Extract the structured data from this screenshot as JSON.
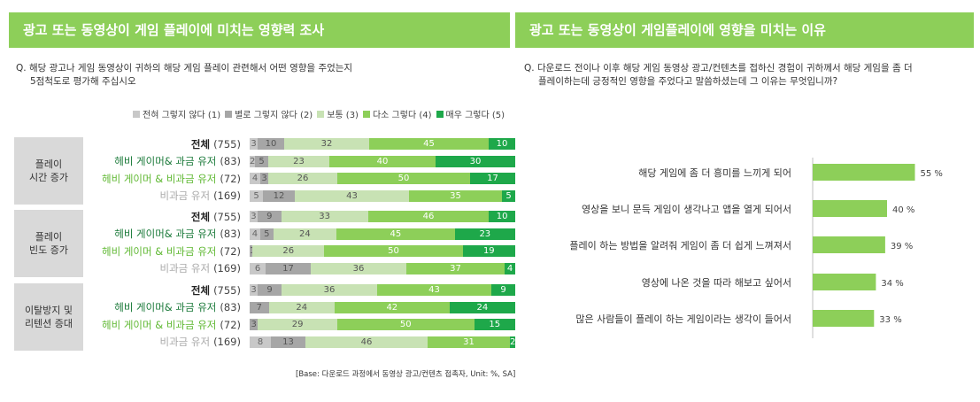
{
  "left_panel": {
    "header": "광고 또는 동영상이 게임 플레이에 미치는 영향력 조사",
    "question_line1": "Q. 해당 광고나 게임 동영상이 귀하의 해당 게임 플레이 관련해서 어떤 영향을 주었는지",
    "question_line2": "5점척도로 평가해 주십시오",
    "base_note": "[Base: 다운로드 과정에서 동영상 광고/컨텐츠 접촉자, Unit: %, SA]",
    "legend": [
      {
        "label": "전혀 그렇지 않다 (1)",
        "color": "#c8c8c8"
      },
      {
        "label": "별로 그렇지 않다 (2)",
        "color": "#a6a6a6"
      },
      {
        "label": "보통 (3)",
        "color": "#c8e2b4"
      },
      {
        "label": "다소 그렇다 (4)",
        "color": "#8dcf59"
      },
      {
        "label": "매우 그렇다 (5)",
        "color": "#1ea84a"
      }
    ]
  },
  "right_panel": {
    "header": "광고 또는 동영상이 게임플레이에 영향을 미치는 이유",
    "question_line1": "Q. 다운로드 전이나 이후 해당 게임 동영상 광고/컨텐츠를 접하신 경험이 귀하께서 해당 게임을 좀 더",
    "question_line2": "플레이하는데 긍정적인 영향을 주었다고 말씀하셨는데 그 이유는 무엇입니까?",
    "bar_color": "#8dcf59"
  },
  "chart_data": [
    {
      "type": "bar",
      "orientation": "horizontal",
      "stacked": true,
      "series_names": [
        "전혀 그렇지 않다 (1)",
        "별로 그렇지 않다 (2)",
        "보통 (3)",
        "다소 그렇다 (4)",
        "매우 그렇다 (5)"
      ],
      "series_colors": [
        "#c8c8c8",
        "#a6a6a6",
        "#c8e2b4",
        "#8dcf59",
        "#1ea84a"
      ],
      "label_colors": [
        "#666666",
        "#555555",
        "#555555",
        "#ffffff",
        "#ffffff"
      ],
      "groups": [
        {
          "name_lines": [
            "플레이",
            "시간 증가"
          ],
          "rows": [
            {
              "label": "전체",
              "n": "(755)",
              "style": "total",
              "values": [
                3,
                10,
                32,
                45,
                10
              ],
              "labels": [
                "3",
                "10",
                "32",
                "45",
                "10"
              ]
            },
            {
              "label": "헤비 게이머& 과금 유저",
              "n": "(83)",
              "style": "heavy",
              "values": [
                2,
                5,
                23,
                40,
                30
              ],
              "labels": [
                "2",
                "5",
                "23",
                "40",
                "30"
              ]
            },
            {
              "label": "헤비 게이머 & 비과금 유저",
              "n": "(72)",
              "style": "paid",
              "values": [
                4,
                3,
                26,
                50,
                17
              ],
              "labels": [
                "4",
                "3",
                "26",
                "50",
                "17"
              ]
            },
            {
              "label": "비과금 유저",
              "n": "(169)",
              "style": "free",
              "values": [
                5,
                12,
                43,
                35,
                5
              ],
              "labels": [
                "5",
                "12",
                "43",
                "35",
                "5"
              ]
            }
          ]
        },
        {
          "name_lines": [
            "플레이",
            "빈도 증가"
          ],
          "rows": [
            {
              "label": "전체",
              "n": "(755)",
              "style": "total",
              "values": [
                3,
                9,
                33,
                46,
                10
              ],
              "labels": [
                "3",
                "9",
                "33",
                "46",
                "10"
              ]
            },
            {
              "label": "헤비 게이머& 과금 유저",
              "n": "(83)",
              "style": "heavy",
              "values": [
                4,
                5,
                24,
                45,
                23
              ],
              "labels": [
                "4",
                "5",
                "24",
                "45",
                "23"
              ]
            },
            {
              "label": "헤비 게이머 & 비과금 유저",
              "n": "(72)",
              "style": "paid",
              "values": [
                0,
                1,
                26,
                50,
                19
              ],
              "labels": [
                "",
                "1",
                "26",
                "50",
                "19"
              ]
            },
            {
              "label": "비과금 유저",
              "n": "(169)",
              "style": "free",
              "values": [
                6,
                17,
                36,
                37,
                4
              ],
              "labels": [
                "6",
                "17",
                "36",
                "37",
                "4"
              ]
            }
          ]
        },
        {
          "name_lines": [
            "이탈방지 및",
            "리텐션 증대"
          ],
          "rows": [
            {
              "label": "전체",
              "n": "(755)",
              "style": "total",
              "values": [
                3,
                9,
                36,
                43,
                9
              ],
              "labels": [
                "3",
                "9",
                "36",
                "43",
                "9"
              ]
            },
            {
              "label": "헤비 게이머& 과금 유저",
              "n": "(83)",
              "style": "heavy",
              "values": [
                0,
                7,
                24,
                42,
                24
              ],
              "labels": [
                "",
                "7",
                "24",
                "42",
                "24"
              ]
            },
            {
              "label": "헤비 게이머 & 비과금 유저",
              "n": "(72)",
              "style": "paid",
              "values": [
                0,
                3,
                29,
                50,
                15
              ],
              "labels": [
                "",
                "3",
                "29",
                "50",
                "15"
              ]
            },
            {
              "label": "비과금 유저",
              "n": "(169)",
              "style": "free",
              "values": [
                8,
                13,
                46,
                31,
                2
              ],
              "labels": [
                "8",
                "13",
                "46",
                "31",
                "2"
              ]
            }
          ]
        }
      ]
    },
    {
      "type": "bar",
      "orientation": "horizontal",
      "categories": [
        "해당 게임에 좀 더 흥미를 느끼게 되어",
        "영상을 보니 문득 게임이 생각나고 앱을 열게 되어서",
        "플레이 하는 방법을 알려줘 게임이  좀 더 쉽게 느껴져서",
        "영상에 나온 것을 따라 해보고 싶어서",
        "많은 사람들이 플레이 하는 게임이라는 생각이 들어서"
      ],
      "values": [
        55,
        40,
        39,
        34,
        33
      ],
      "value_labels": [
        "55 %",
        "40 %",
        "39 %",
        "34 %",
        "33 %"
      ]
    }
  ]
}
